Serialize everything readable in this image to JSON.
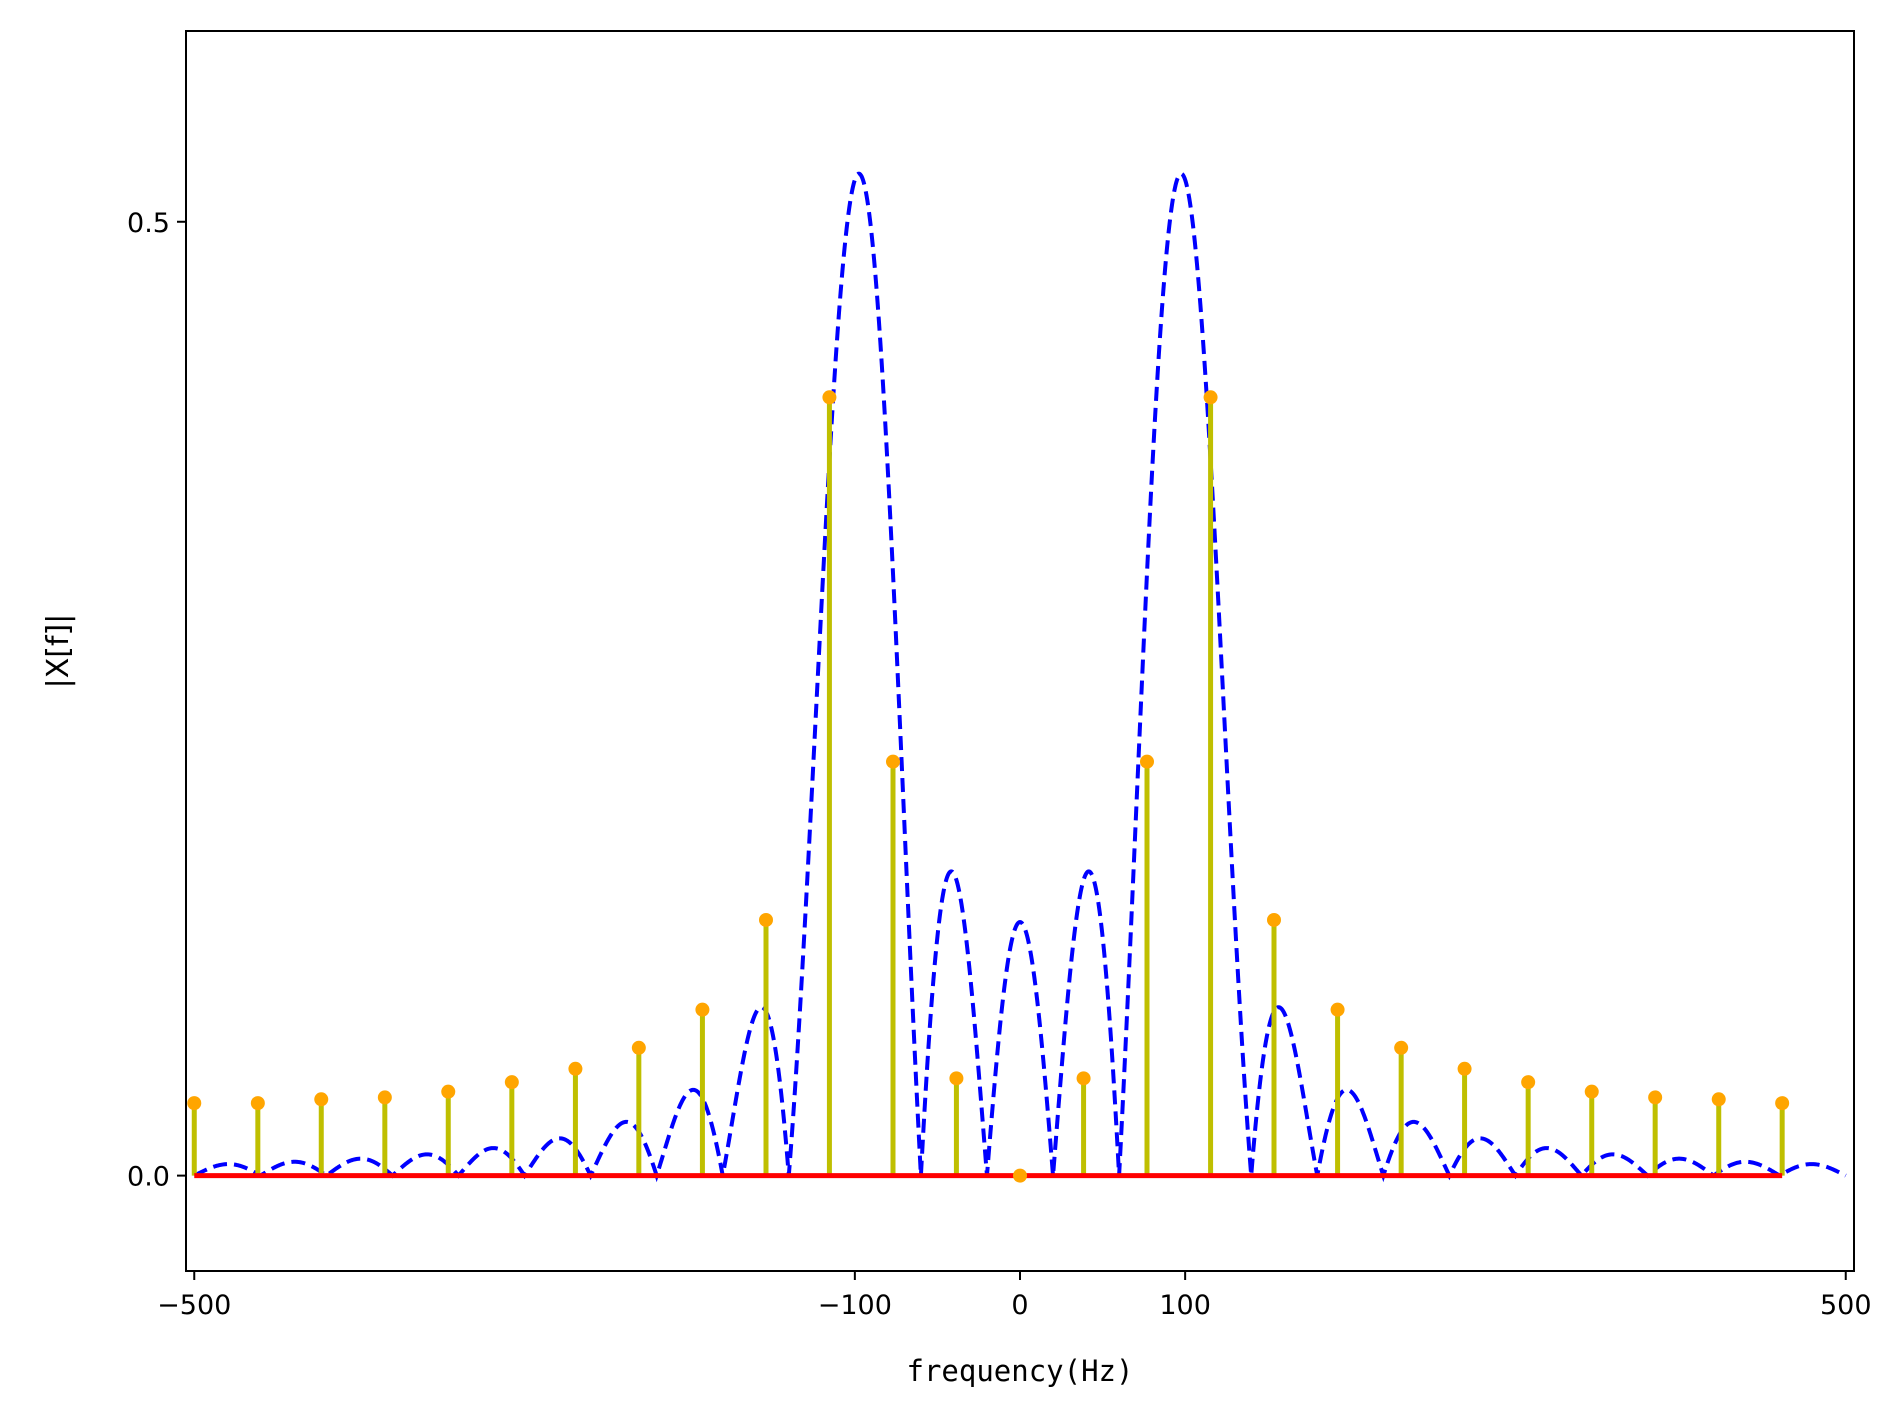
{
  "chart_data": {
    "type": "stem",
    "title": "",
    "xlabel": "frequency(Hz)",
    "ylabel": "|X[f]|",
    "xlim": [
      -505,
      505
    ],
    "ylim": [
      -0.05,
      0.6
    ],
    "xticks": [
      -500,
      -100,
      0,
      100,
      500
    ],
    "xtick_labels": [
      "−500",
      "−100",
      "0",
      "100",
      "500"
    ],
    "yticks": [
      0.0,
      0.5
    ],
    "ytick_labels": [
      "0.0",
      "0.5"
    ],
    "grid": false,
    "legend": "none",
    "colors": {
      "envelope": "#0000ff",
      "stem": "#bfbf00",
      "marker": "#ffa500",
      "baseline": "#ff0000"
    },
    "envelope": {
      "name": "",
      "style": "dashed",
      "x_range": [
        -500,
        500
      ],
      "peak": 0.522,
      "peak_freqs": [
        -100,
        100
      ],
      "null_spacing_hz": 40
    },
    "stems": {
      "x": [
        -500,
        -461.5,
        -423.1,
        -384.6,
        -346.2,
        -307.7,
        -269.2,
        -230.8,
        -192.3,
        -153.8,
        -115.4,
        -76.9,
        -38.5,
        0,
        38.5,
        76.9,
        115.4,
        153.8,
        192.3,
        230.8,
        269.2,
        307.7,
        346.2,
        384.6,
        423.1,
        461.5
      ],
      "y": [
        0.038,
        0.038,
        0.04,
        0.041,
        0.044,
        0.049,
        0.056,
        0.067,
        0.087,
        0.134,
        0.408,
        0.217,
        0.051,
        0.0,
        0.051,
        0.217,
        0.408,
        0.134,
        0.087,
        0.067,
        0.056,
        0.049,
        0.044,
        0.041,
        0.04,
        0.038
      ]
    }
  }
}
